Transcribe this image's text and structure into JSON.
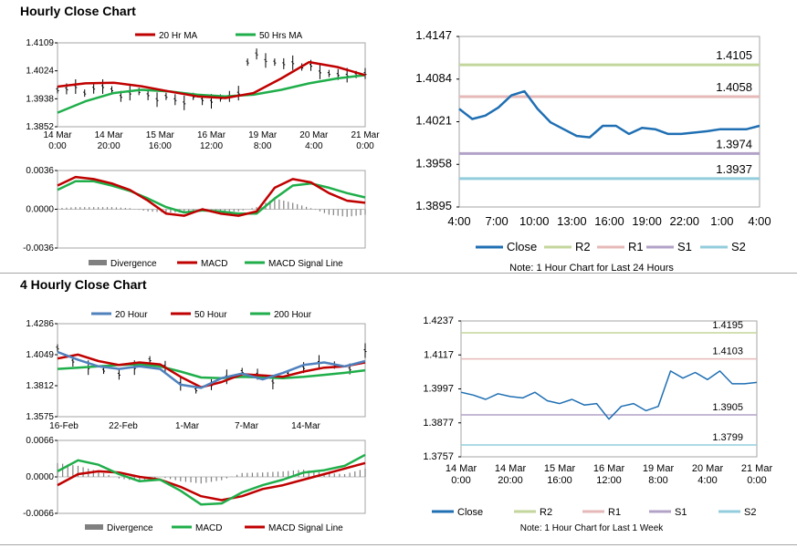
{
  "sections": {
    "hourly_title": "Hourly Close Chart",
    "four_hourly_title": "4 Hourly Close Chart"
  },
  "colors": {
    "close": "#1f6fb3",
    "ma20": "#c00000",
    "ma50": "#1fae4a",
    "ma200": "#1fae4a",
    "r2": "#c3d69b",
    "r1": "#e6b9b8",
    "s1": "#b3a2c7",
    "s2": "#93cddd",
    "price": "#000000",
    "histogram": "#808080",
    "ma20_4h": "#4f81bd"
  },
  "chart_data": [
    {
      "id": "hourly_price",
      "type": "line",
      "x_ticks": [
        "14 Mar\n0:00",
        "14 Mar\n20:00",
        "15 Mar\n16:00",
        "16 Mar\n12:00",
        "19 Mar\n8:00",
        "20 Mar\n4:00",
        "21 Mar\n0:00"
      ],
      "y_ticks": [
        "1.4109",
        "1.4024",
        "1.3938",
        "1.3852"
      ],
      "ylim": [
        1.3852,
        1.4109
      ],
      "series": [
        {
          "name": "20 Hr MA",
          "values": [
            1.3975,
            1.3985,
            1.3987,
            1.3976,
            1.396,
            1.3945,
            1.394,
            1.3955,
            1.4,
            1.405,
            1.4035,
            1.401
          ]
        },
        {
          "name": "50 Hrs MA",
          "values": [
            1.3895,
            1.393,
            1.3955,
            1.3965,
            1.396,
            1.395,
            1.3945,
            1.395,
            1.3965,
            1.3985,
            1.4,
            1.401
          ]
        }
      ],
      "close": [
        1.3965,
        1.3968,
        1.3975,
        1.3955,
        1.397,
        1.3975,
        1.3965,
        1.3945,
        1.3955,
        1.396,
        1.395,
        1.3935,
        1.3945,
        1.3935,
        1.3925,
        1.3945,
        1.3935,
        1.393,
        1.394,
        1.3945,
        1.3955,
        1.405,
        1.4075,
        1.4055,
        1.405,
        1.4045,
        1.4048,
        1.4035,
        1.404,
        1.402,
        1.4015,
        1.4012,
        1.401,
        1.4012,
        1.4015
      ]
    },
    {
      "id": "hourly_macd",
      "type": "line",
      "y_ticks": [
        "0.0036",
        "0.0000",
        "-0.0036"
      ],
      "ylim": [
        -0.0036,
        0.0036
      ],
      "legend": [
        "Divergence",
        "MACD",
        "MACD Signal Line"
      ],
      "series": [
        {
          "name": "MACD",
          "values": [
            0.0022,
            0.003,
            0.0028,
            0.0024,
            0.0018,
            0.0008,
            -0.0004,
            -0.0006,
            0.0,
            -0.0004,
            -0.0006,
            -0.0002,
            0.002,
            0.0028,
            0.0025,
            0.0015,
            0.0008,
            0.0006
          ]
        },
        {
          "name": "MACD Signal Line",
          "values": [
            0.0018,
            0.0026,
            0.0026,
            0.0022,
            0.0017,
            0.001,
            0.0002,
            -0.0003,
            -0.0001,
            -0.0002,
            -0.0004,
            -0.0004,
            0.001,
            0.0022,
            0.0024,
            0.002,
            0.0015,
            0.0011
          ]
        }
      ],
      "divergence": [
        0.0001,
        0.0002,
        0.0002,
        0.0002,
        0.0001,
        -0.0002,
        -0.0003,
        -0.0003,
        0.0001,
        -0.0002,
        -0.0002,
        0.0002,
        0.001,
        0.0006,
        0.0001,
        -0.0005,
        -0.0007,
        -0.0005
      ]
    },
    {
      "id": "hourly_pivot",
      "type": "line",
      "title": "",
      "x_ticks": [
        "4:00",
        "7:00",
        "10:00",
        "13:00",
        "16:00",
        "19:00",
        "22:00",
        "1:00",
        "4:00"
      ],
      "y_ticks": [
        "1.4147",
        "1.4084",
        "1.4021",
        "1.3958",
        "1.3895"
      ],
      "ylim": [
        1.3895,
        1.4147
      ],
      "close": [
        1.404,
        1.4025,
        1.403,
        1.4042,
        1.406,
        1.4066,
        1.404,
        1.402,
        1.401,
        1.4,
        1.3998,
        1.4015,
        1.4015,
        1.4003,
        1.4012,
        1.401,
        1.4003,
        1.4003,
        1.4005,
        1.4007,
        1.401,
        1.401,
        1.401,
        1.4015
      ],
      "levels": {
        "R2": 1.4105,
        "R1": 1.4058,
        "S1": 1.3974,
        "S2": 1.3937
      },
      "level_labels": [
        "1.4105",
        "1.4058",
        "1.3974",
        "1.3937"
      ],
      "legend": [
        "Close",
        "R2",
        "R1",
        "S1",
        "S2"
      ],
      "note": "Note: 1 Hour Chart for Last 24 Hours"
    },
    {
      "id": "four_hourly_price",
      "type": "line",
      "x_ticks": [
        "16-Feb",
        "22-Feb",
        "1-Mar",
        "7-Mar",
        "14-Mar"
      ],
      "y_ticks": [
        "1.4286",
        "1.4049",
        "1.3812",
        "1.3575"
      ],
      "ylim": [
        1.3575,
        1.4286
      ],
      "series": [
        {
          "name": "20 Hour",
          "values": [
            1.407,
            1.401,
            1.396,
            1.394,
            1.396,
            1.394,
            1.382,
            1.3795,
            1.387,
            1.3905,
            1.386,
            1.391,
            1.397,
            1.399,
            1.396,
            1.4
          ]
        },
        {
          "name": "50 Hour",
          "values": [
            1.402,
            1.405,
            1.4,
            1.397,
            1.399,
            1.3975,
            1.388,
            1.38,
            1.384,
            1.39,
            1.389,
            1.388,
            1.392,
            1.395,
            1.396,
            1.399
          ]
        },
        {
          "name": "200 Hour",
          "values": [
            1.394,
            1.395,
            1.396,
            1.397,
            1.3975,
            1.396,
            1.392,
            1.3875,
            1.387,
            1.388,
            1.3875,
            1.387,
            1.388,
            1.3895,
            1.391,
            1.393
          ]
        }
      ],
      "close": [
        1.41,
        1.4,
        1.395,
        1.393,
        1.39,
        1.395,
        1.401,
        1.396,
        1.383,
        1.378,
        1.382,
        1.388,
        1.392,
        1.39,
        1.384,
        1.39,
        1.395,
        1.399,
        1.397,
        1.394,
        1.408
      ]
    },
    {
      "id": "four_hourly_macd",
      "type": "line",
      "y_ticks": [
        "0.0066",
        "0.0000",
        "-0.0066"
      ],
      "ylim": [
        -0.0066,
        0.0066
      ],
      "legend": [
        "Divergence",
        "MACD",
        "MACD Signal Line"
      ],
      "series": [
        {
          "name": "MACD",
          "values": [
            0.001,
            0.003,
            0.0022,
            0.0005,
            -0.0008,
            -0.0005,
            -0.0025,
            -0.005,
            -0.0048,
            -0.0028,
            -0.0015,
            -0.0005,
            0.0008,
            0.0012,
            0.002,
            0.004
          ]
        },
        {
          "name": "MACD Signal Line",
          "values": [
            -0.0015,
            0.0005,
            0.001,
            0.0008,
            0.0,
            -0.0005,
            -0.0018,
            -0.0035,
            -0.0042,
            -0.0035,
            -0.0022,
            -0.0015,
            -0.0005,
            0.0005,
            0.0015,
            0.0025
          ]
        }
      ],
      "divergence": [
        0.0025,
        0.002,
        0.001,
        -0.0003,
        -0.0008,
        0.0,
        -0.0008,
        -0.0012,
        -0.0006,
        0.0007,
        0.0008,
        0.001,
        0.0013,
        0.0007,
        0.0005,
        0.0015
      ]
    },
    {
      "id": "four_hourly_pivot",
      "type": "line",
      "x_ticks": [
        "14 Mar\n0:00",
        "14 Mar\n20:00",
        "15 Mar\n16:00",
        "16 Mar\n12:00",
        "19 Mar\n8:00",
        "20 Mar\n4:00",
        "21 Mar\n0:00"
      ],
      "y_ticks": [
        "1.4237",
        "1.4117",
        "1.3997",
        "1.3877",
        "1.3757"
      ],
      "ylim": [
        1.3757,
        1.4237
      ],
      "close": [
        1.3985,
        1.3975,
        1.396,
        1.398,
        1.397,
        1.3965,
        1.3985,
        1.3955,
        1.3945,
        1.396,
        1.394,
        1.3945,
        1.389,
        1.3935,
        1.3945,
        1.392,
        1.3935,
        1.406,
        1.4035,
        1.4055,
        1.403,
        1.406,
        1.4015,
        1.4015,
        1.402
      ],
      "levels": {
        "R2": 1.4195,
        "R1": 1.4103,
        "S1": 1.3905,
        "S2": 1.3799
      },
      "level_labels": [
        "1.4195",
        "1.4103",
        "1.3905",
        "1.3799"
      ],
      "legend": [
        "Close",
        "R2",
        "R1",
        "S1",
        "S2"
      ],
      "note": "Note: 1 Hour Chart for Last 1 Week"
    }
  ],
  "legends": {
    "hourly_price": [
      "20 Hr MA",
      "50 Hrs MA"
    ],
    "four_hourly_price": [
      "20 Hour",
      "50 Hour",
      "200 Hour"
    ],
    "four_hourly_macd": [
      "Divergence",
      "MACD",
      "MACD Signal Line"
    ]
  }
}
